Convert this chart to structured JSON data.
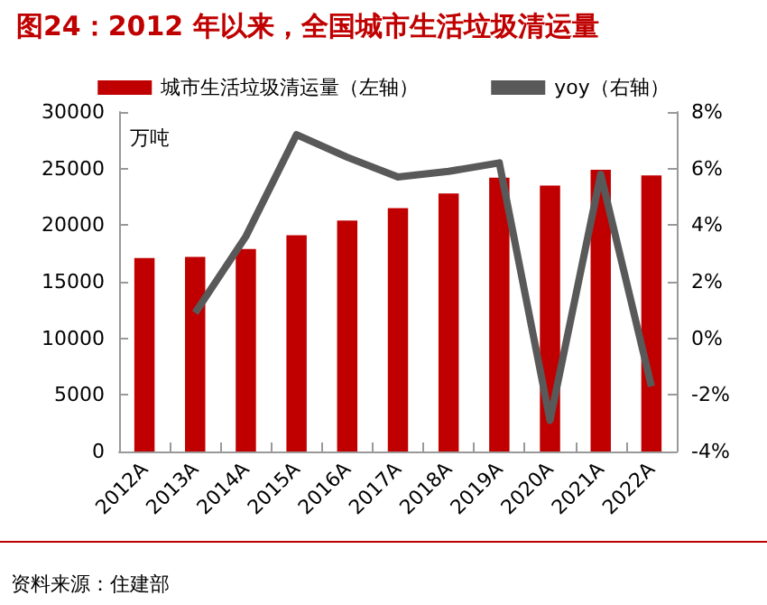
{
  "chart_data": {
    "type": "bar",
    "title": "图24：2012 年以来，全国城市生活垃圾清运量",
    "ylabel": "万吨",
    "categories": [
      "2012A",
      "2013A",
      "2014A",
      "2015A",
      "2016A",
      "2017A",
      "2018A",
      "2019A",
      "2020A",
      "2021A",
      "2022A"
    ],
    "series": [
      {
        "name": "城市生活垃圾清运量（左轴）",
        "color": "#c00000",
        "values": [
          17100,
          17200,
          17900,
          19100,
          20400,
          21500,
          22800,
          24200,
          23500,
          24900,
          24400
        ]
      },
      {
        "name": "yoy（右轴）",
        "type": "line",
        "axis": "y2",
        "color": "#595959",
        "values": [
          null,
          0.9,
          3.6,
          7.2,
          6.4,
          5.7,
          5.9,
          6.2,
          -2.9,
          5.8,
          -1.7
        ]
      }
    ],
    "ylim": [
      0,
      30000
    ],
    "yticks": [
      0,
      5000,
      10000,
      15000,
      20000,
      25000,
      30000
    ],
    "y2lim": [
      -4,
      8
    ],
    "y2ticks": [
      {
        "value": -4,
        "label": "-4%"
      },
      {
        "value": -2,
        "label": "-2%"
      },
      {
        "value": 0,
        "label": "0%"
      },
      {
        "value": 2,
        "label": "2%"
      },
      {
        "value": 4,
        "label": "4%"
      },
      {
        "value": 6,
        "label": "6%"
      },
      {
        "value": 8,
        "label": "8%"
      }
    ],
    "grid": false,
    "legend": "top",
    "marker": "none",
    "annotations": [
      "资料来源：住建部"
    ]
  }
}
